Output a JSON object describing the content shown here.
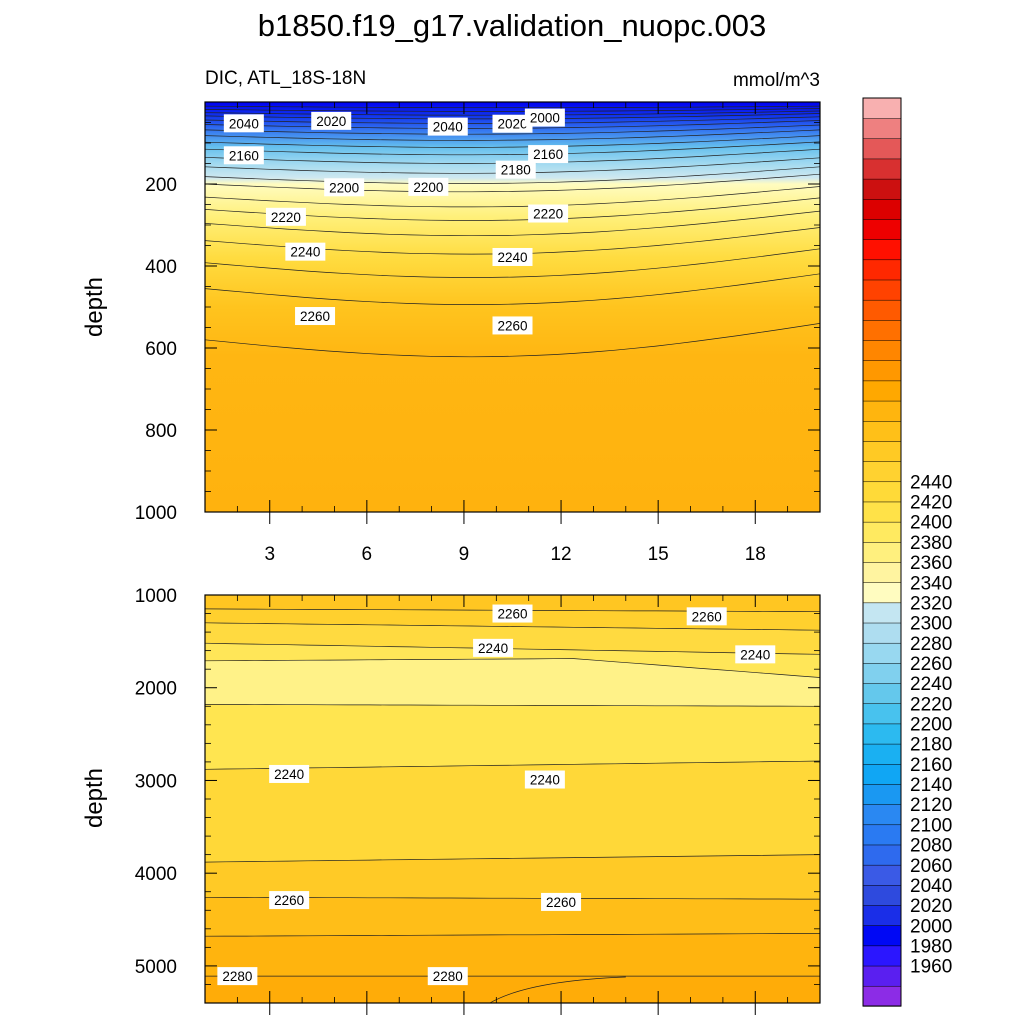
{
  "figure": {
    "title": "b1850.f19_g17.validation_nuopc.003"
  },
  "chart_data": [
    {
      "type": "contour",
      "panel": "upper",
      "left_subtitle": "DIC, ATL_18S-18N",
      "right_subtitle": "mmol/m^3",
      "ylabel": "depth",
      "ylim": [
        0,
        1000
      ],
      "y_reversed": true,
      "xlim": [
        1,
        20
      ],
      "xticks": [
        3,
        6,
        9,
        12,
        15,
        18
      ],
      "yticks": [
        200,
        400,
        600,
        800,
        1000
      ],
      "contour_labels": [
        {
          "x": 2.2,
          "y": 52,
          "text": "2040"
        },
        {
          "x": 4.9,
          "y": 46,
          "text": "2020"
        },
        {
          "x": 8.5,
          "y": 60,
          "text": "2040"
        },
        {
          "x": 10.5,
          "y": 53,
          "text": "2020"
        },
        {
          "x": 11.5,
          "y": 38,
          "text": "2000"
        },
        {
          "x": 2.2,
          "y": 130,
          "text": "2160"
        },
        {
          "x": 10.6,
          "y": 165,
          "text": "2180"
        },
        {
          "x": 11.6,
          "y": 127,
          "text": "2160"
        },
        {
          "x": 5.3,
          "y": 208,
          "text": "2200"
        },
        {
          "x": 7.9,
          "y": 207,
          "text": "2200"
        },
        {
          "x": 3.5,
          "y": 280,
          "text": "2220"
        },
        {
          "x": 11.6,
          "y": 272,
          "text": "2220"
        },
        {
          "x": 4.1,
          "y": 365,
          "text": "2240"
        },
        {
          "x": 10.5,
          "y": 378,
          "text": "2240"
        },
        {
          "x": 4.4,
          "y": 522,
          "text": "2260"
        },
        {
          "x": 10.5,
          "y": 545,
          "text": "2260"
        }
      ]
    },
    {
      "type": "contour",
      "panel": "lower",
      "ylabel": "depth",
      "ylim": [
        1000,
        5400
      ],
      "y_reversed": true,
      "xlim": [
        1,
        20
      ],
      "yticks": [
        1000,
        2000,
        3000,
        4000,
        5000
      ],
      "contour_labels": [
        {
          "x": 10.5,
          "y": 1200,
          "text": "2260"
        },
        {
          "x": 16.5,
          "y": 1230,
          "text": "2260"
        },
        {
          "x": 9.9,
          "y": 1570,
          "text": "2240"
        },
        {
          "x": 18.0,
          "y": 1640,
          "text": "2240"
        },
        {
          "x": 3.6,
          "y": 2930,
          "text": "2240"
        },
        {
          "x": 11.5,
          "y": 2990,
          "text": "2240"
        },
        {
          "x": 3.6,
          "y": 4290,
          "text": "2260"
        },
        {
          "x": 12.0,
          "y": 4310,
          "text": "2260"
        },
        {
          "x": 2.0,
          "y": 5110,
          "text": "2280"
        },
        {
          "x": 8.5,
          "y": 5110,
          "text": "2280"
        }
      ]
    }
  ],
  "colorbar": {
    "labels": [
      "1960",
      "1980",
      "2000",
      "2020",
      "2040",
      "2060",
      "2080",
      "2100",
      "2120",
      "2140",
      "2160",
      "2180",
      "2200",
      "2220",
      "2240",
      "2260",
      "2280",
      "2300",
      "2320",
      "2340",
      "2360",
      "2380",
      "2400",
      "2420",
      "2440"
    ],
    "colors_bottom_to_top": [
      "#8c2ce6",
      "#5a1ff0",
      "#2b16ff",
      "#0008f5",
      "#1a2ee8",
      "#2e4ade",
      "#3a5ae6",
      "#2e6aee",
      "#2a7af2",
      "#2a88f2",
      "#1a98f2",
      "#10a6f4",
      "#1ab0f2",
      "#2cbaf0",
      "#48c2ee",
      "#64c8ec",
      "#80d0ee",
      "#98d8f0",
      "#aeddf0",
      "#c4e6f2",
      "#fffcc0",
      "#fff4a0",
      "#fff07e",
      "#ffea60",
      "#ffe248",
      "#ffda38",
      "#ffd230",
      "#ffca24",
      "#ffc018",
      "#ffb50e",
      "#ffa800",
      "#ff9800",
      "#ff8600",
      "#ff7000",
      "#ff5a00",
      "#ff4200",
      "#ff2800",
      "#ff1000",
      "#ee0000",
      "#dc0000",
      "#cc1010",
      "#d83030",
      "#e45858",
      "#ee8080",
      "#f8b0b0"
    ]
  }
}
